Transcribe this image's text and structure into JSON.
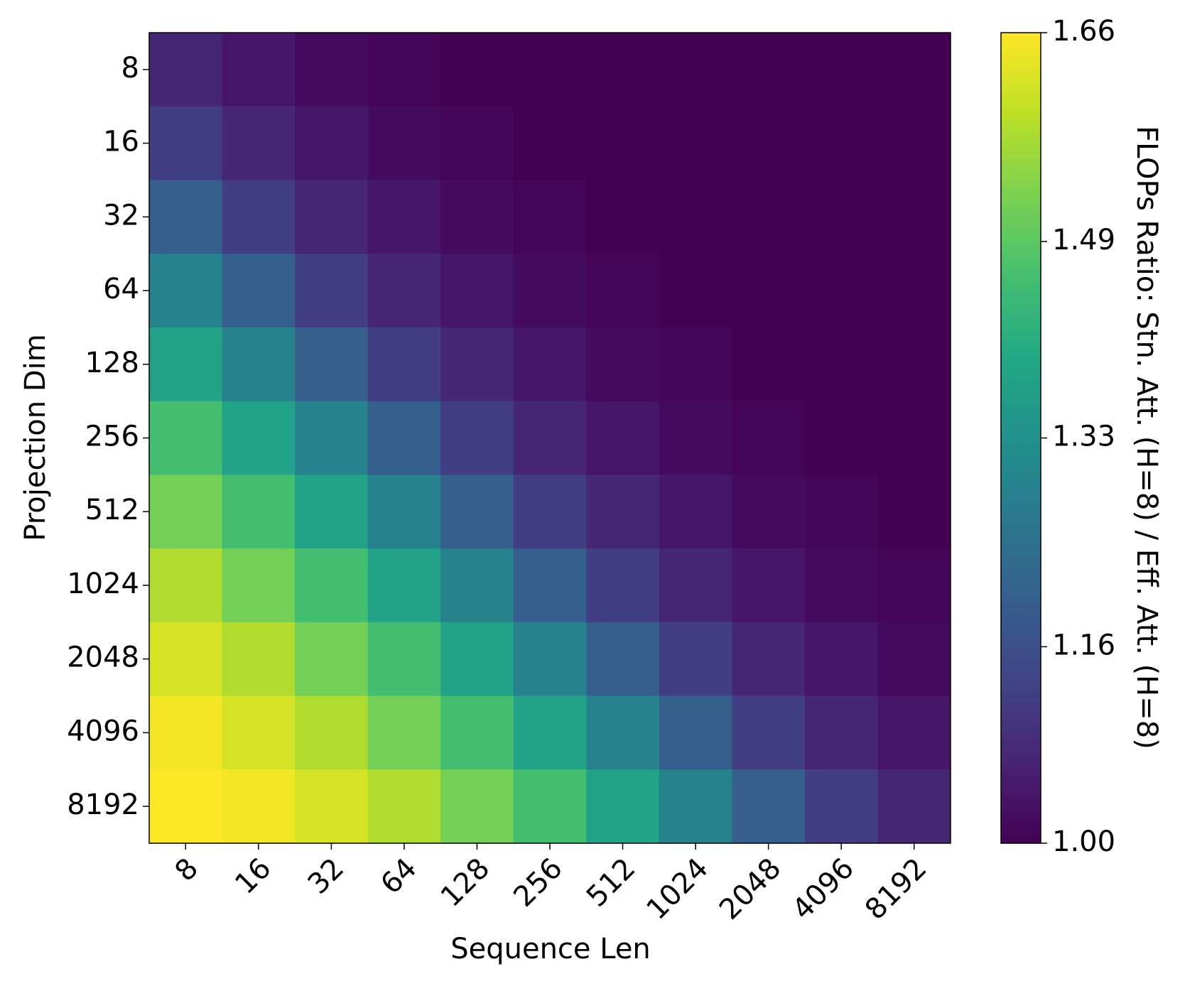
{
  "chart_data": {
    "type": "heatmap",
    "xlabel": "Sequence Len",
    "ylabel": "Projection Dim",
    "categories": [
      "8",
      "16",
      "32",
      "64",
      "128",
      "256",
      "512",
      "1024",
      "2048",
      "4096",
      "8192"
    ],
    "y_categories": [
      "8",
      "16",
      "32",
      "64",
      "128",
      "256",
      "512",
      "1024",
      "2048",
      "4096",
      "8192"
    ],
    "z": [
      [
        1.07,
        1.04,
        1.02,
        1.01,
        1.0,
        1.0,
        1.0,
        1.0,
        1.0,
        1.0,
        1.0
      ],
      [
        1.12,
        1.07,
        1.04,
        1.02,
        1.01,
        1.0,
        1.0,
        1.0,
        1.0,
        1.0,
        1.0
      ],
      [
        1.2,
        1.12,
        1.07,
        1.04,
        1.02,
        1.01,
        1.0,
        1.0,
        1.0,
        1.0,
        1.0
      ],
      [
        1.29,
        1.2,
        1.12,
        1.07,
        1.04,
        1.02,
        1.01,
        1.0,
        1.0,
        1.0,
        1.0
      ],
      [
        1.38,
        1.29,
        1.2,
        1.12,
        1.07,
        1.04,
        1.02,
        1.01,
        1.0,
        1.0,
        1.0
      ],
      [
        1.46,
        1.38,
        1.29,
        1.2,
        1.12,
        1.07,
        1.04,
        1.02,
        1.01,
        1.0,
        1.0
      ],
      [
        1.52,
        1.46,
        1.38,
        1.29,
        1.2,
        1.12,
        1.07,
        1.04,
        1.02,
        1.01,
        1.0
      ],
      [
        1.58,
        1.52,
        1.46,
        1.38,
        1.29,
        1.2,
        1.12,
        1.07,
        1.04,
        1.02,
        1.01
      ],
      [
        1.62,
        1.58,
        1.52,
        1.46,
        1.38,
        1.29,
        1.2,
        1.12,
        1.07,
        1.04,
        1.02
      ],
      [
        1.65,
        1.62,
        1.58,
        1.52,
        1.46,
        1.38,
        1.29,
        1.2,
        1.12,
        1.07,
        1.04
      ],
      [
        1.66,
        1.65,
        1.62,
        1.58,
        1.52,
        1.46,
        1.38,
        1.29,
        1.2,
        1.12,
        1.07
      ]
    ],
    "colormap": "viridis",
    "colorbar_label": "FLOPs Ratio: Stn. Att. (H=8) / Eff. Att. (H=8)",
    "clim": [
      1.0,
      1.66
    ],
    "cticks": [
      {
        "value": 1.0,
        "label": "1.00"
      },
      1.16,
      1.33,
      1.49,
      1.66
    ]
  }
}
